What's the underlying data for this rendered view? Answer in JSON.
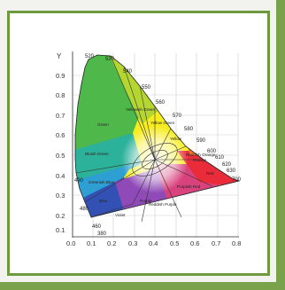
{
  "diagram": {
    "y_axis_label": "Y",
    "x_axis_label": "",
    "y_ticks": [
      "0.9",
      "0.8",
      "0.7",
      "0.6",
      "0.5",
      "0.4",
      "0.3",
      "0.2",
      "0.1"
    ],
    "x_ticks": [
      "0.0",
      "0.1",
      "0.2",
      "0.3",
      "0.4",
      "0.5",
      "0.6",
      "0.7",
      "0.8"
    ],
    "wavelengths": {
      "w520": "520",
      "w530": "530",
      "w540": "540",
      "w550": "550",
      "w560": "560",
      "w570": "570",
      "w580": "580",
      "w590": "590",
      "w600": "600",
      "w610": "610",
      "w620": "620",
      "w630": "630",
      "w700": "700",
      "w490": "490",
      "w480": "480",
      "w460": "460",
      "w380": "380"
    },
    "regions": {
      "green": "Green",
      "yellowish_green": "Yellowish Green",
      "yellow_green": "Yellow Green",
      "bluish_green": "Bluish Green",
      "greenish_blue": "Greenish Blue",
      "blue": "Blue",
      "violet": "Violet",
      "purple": "Purple",
      "reddish_purple": "Reddish Purple",
      "purplish_red": "Purplish Red",
      "red": "Red",
      "orange": "Orange",
      "reddish_orange": "Reddish Orange",
      "yellow": "Yellow"
    }
  }
}
